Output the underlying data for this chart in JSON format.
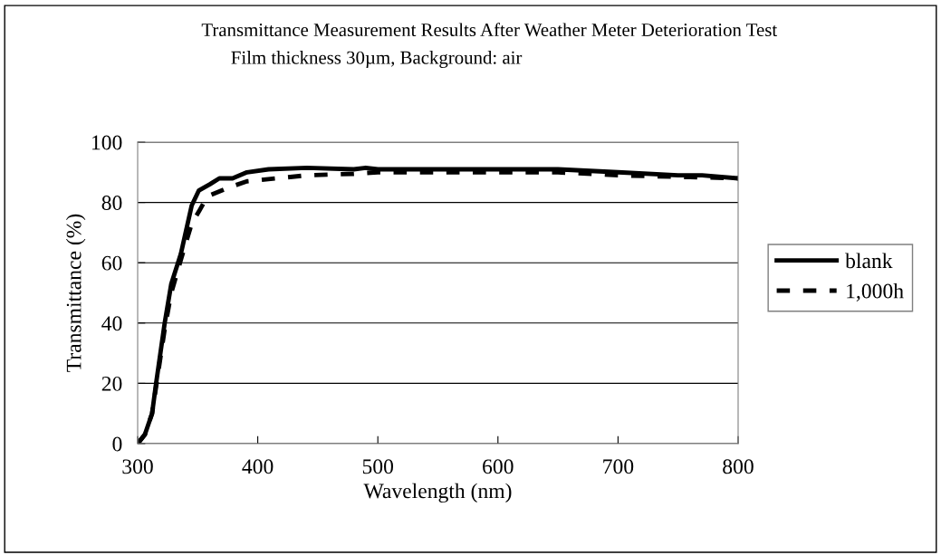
{
  "chart_data": {
    "type": "line",
    "title": "Transmittance Measurement Results After Weather Meter Deterioration Test",
    "subtitle": "Film thickness 30µm, Background: air",
    "xlabel": "Wavelength (nm)",
    "ylabel": "Transmittance (%)",
    "xlim": [
      300,
      800
    ],
    "xticks": [
      300,
      400,
      500,
      600,
      700,
      800
    ],
    "ylim": [
      0,
      100
    ],
    "yticks": [
      0,
      20,
      40,
      60,
      80,
      100
    ],
    "grid": "y",
    "legend": "right",
    "marker": "none",
    "series": [
      {
        "name": "blank",
        "color": "#000000",
        "line_style": "solid",
        "x": [
          300,
          306,
          312,
          315,
          322.5,
          328,
          336,
          345,
          351,
          360,
          368,
          379,
          391,
          409,
          441,
          480,
          490,
          500,
          550,
          600,
          650,
          700,
          750,
          770,
          800
        ],
        "values": [
          0,
          3,
          10,
          19,
          40,
          53,
          63,
          79,
          84,
          86,
          88,
          88,
          90,
          91,
          91.5,
          91,
          91.5,
          91,
          91,
          91,
          91,
          90,
          89,
          89,
          88
        ]
      },
      {
        "name": "1,000h",
        "color": "#000000",
        "line_style": "dashed",
        "x": [
          300,
          306,
          312,
          315,
          322.5,
          328,
          336,
          345,
          351,
          358,
          376,
          391,
          416,
          441,
          480,
          500,
          550,
          600,
          650,
          700,
          750,
          800
        ],
        "values": [
          0,
          3,
          10,
          18,
          38,
          50,
          61,
          73,
          77,
          82,
          85,
          87,
          88,
          89,
          89.5,
          90,
          90,
          90,
          90,
          89,
          88.5,
          88
        ]
      }
    ]
  }
}
